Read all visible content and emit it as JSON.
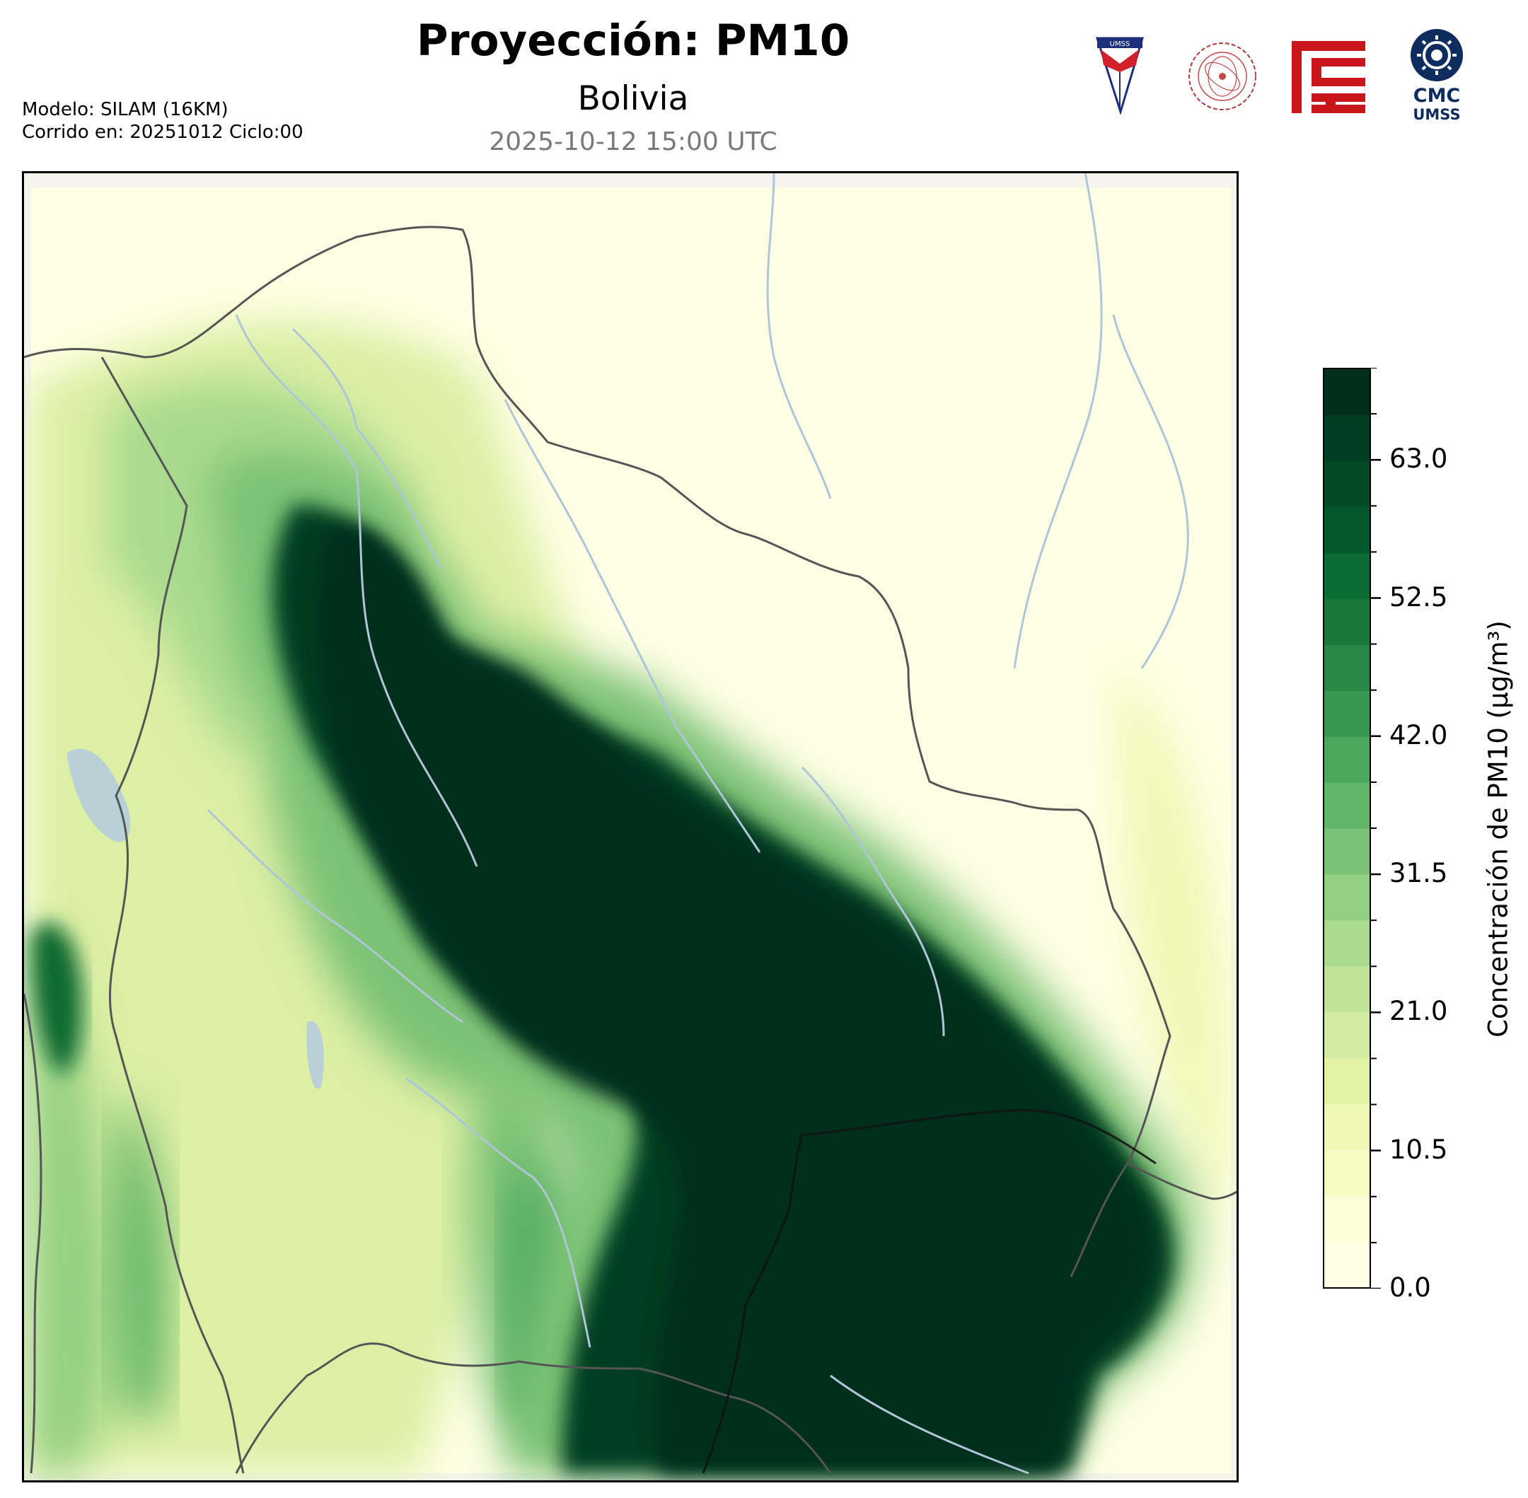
{
  "header": {
    "title": "Proyección: PM10",
    "subtitle": "Bolivia",
    "datetime": "2025-10-12 15:00 UTC",
    "model_line": "Modelo: SILAM (16KM)",
    "run_line": "Corrido en: 20251012 Ciclo:00"
  },
  "logos": {
    "umss_shield": "UMSS",
    "physics_dept": "DEPARTAMENTO DE FISICA",
    "cmc_line1": "CMC",
    "cmc_line2": "UMSS"
  },
  "colorbar": {
    "title": "Concentración de PM10 (µg/m³)",
    "min": 0,
    "max": 70,
    "levels": 20,
    "tick_labels": [
      "0.0",
      "10.5",
      "21.0",
      "31.5",
      "42.0",
      "52.5",
      "63.0"
    ],
    "tick_values": [
      0.0,
      10.5,
      21.0,
      31.5,
      42.0,
      52.5,
      63.0
    ],
    "colors": [
      "#ffffe5",
      "#fcfed6",
      "#f7fcc4",
      "#eff8b5",
      "#e2f2a7",
      "#d2eba0",
      "#bfe398",
      "#a9da8e",
      "#93cf82",
      "#7bc276",
      "#62b568",
      "#4aa75b",
      "#36974f",
      "#278744",
      "#19783b",
      "#0a6b33",
      "#04592c",
      "#024a26",
      "#013d20",
      "#002f1c"
    ]
  },
  "map": {
    "colors": {
      "low": "#ffffe5",
      "mid": "#a9da8e",
      "high": "#002f1c",
      "river": "#aec6d8",
      "border": "#555555",
      "lake": "#b9d1d6"
    }
  }
}
